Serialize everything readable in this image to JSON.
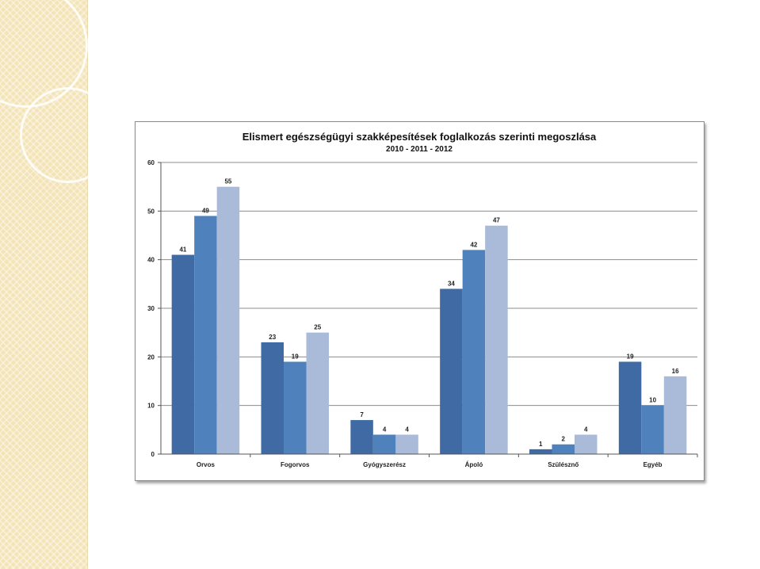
{
  "colors": {
    "series": [
      "#3f6aa3",
      "#4f81bd",
      "#a9bbd9"
    ],
    "grid": "#8c8c8c",
    "axis": "#555555",
    "side_strip": "#f3e3b6"
  },
  "chart_data": {
    "type": "bar",
    "title": "Elismert egészségügyi szakképesítések foglalkozás szerinti megoszlása",
    "subtitle": "2010 - 2011 - 2012",
    "xlabel": "",
    "ylabel": "",
    "ylim": [
      0,
      60
    ],
    "yticks": [
      0,
      10,
      20,
      30,
      40,
      50,
      60
    ],
    "grid": true,
    "legend": "none",
    "categories": [
      "Orvos",
      "Fogorvos",
      "Gyógyszerész",
      "Ápoló",
      "Szülésznő",
      "Egyéb"
    ],
    "series": [
      {
        "values": [
          41,
          23,
          7,
          34,
          1,
          19
        ]
      },
      {
        "values": [
          49,
          19,
          4,
          42,
          2,
          10
        ]
      },
      {
        "values": [
          55,
          25,
          4,
          47,
          4,
          16
        ]
      }
    ]
  }
}
